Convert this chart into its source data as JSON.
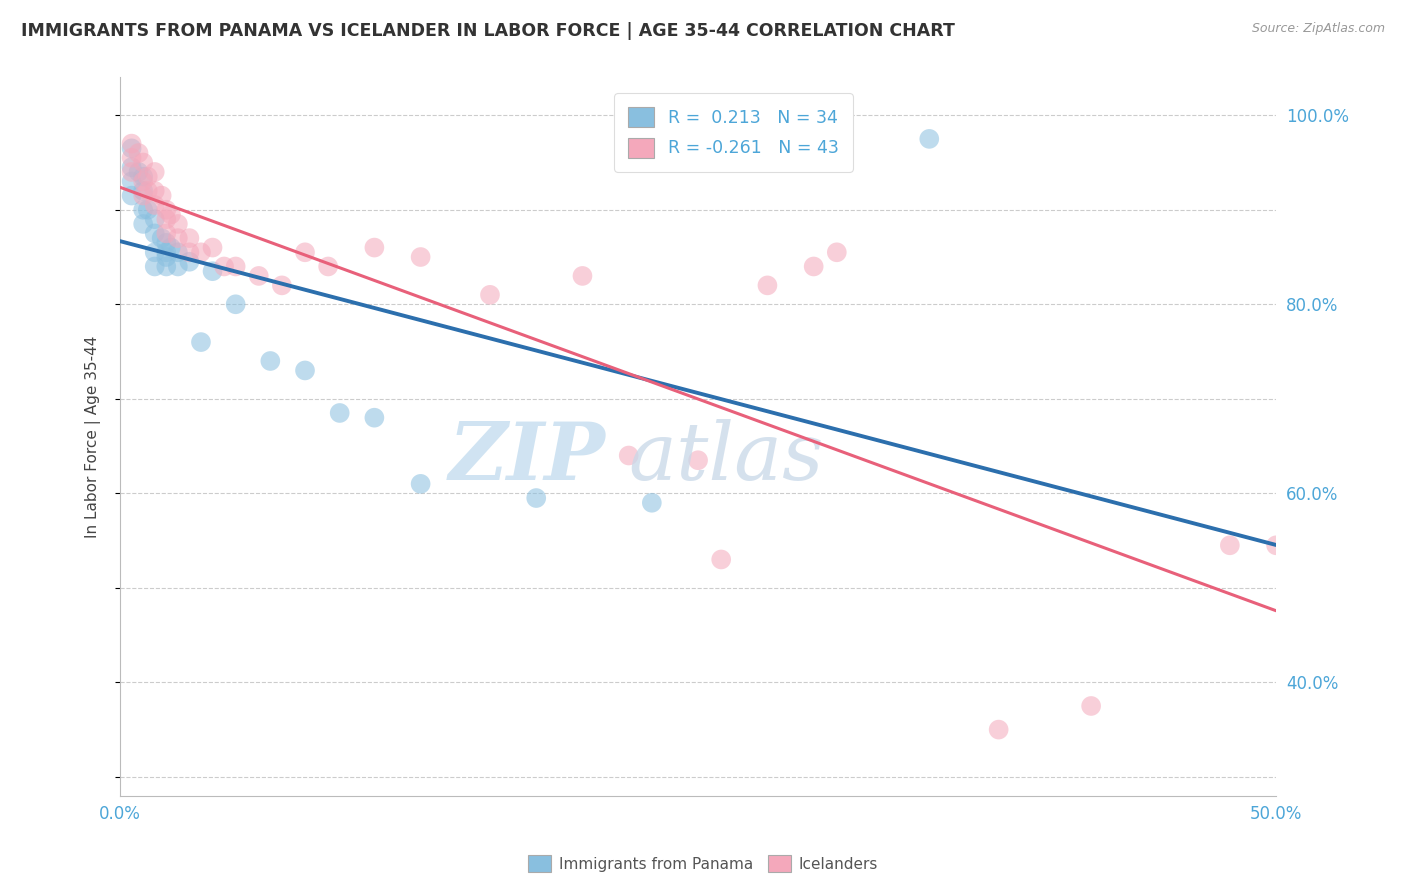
{
  "title": "IMMIGRANTS FROM PANAMA VS ICELANDER IN LABOR FORCE | AGE 35-44 CORRELATION CHART",
  "source": "Source: ZipAtlas.com",
  "ylabel": "In Labor Force | Age 35-44",
  "xlim": [
    0.0,
    0.5
  ],
  "ylim": [
    0.28,
    1.04
  ],
  "xticks": [
    0.0,
    0.05,
    0.1,
    0.15,
    0.2,
    0.25,
    0.3,
    0.35,
    0.4,
    0.45,
    0.5
  ],
  "yticks": [
    0.4,
    0.6,
    0.8,
    1.0
  ],
  "ytick_labels": [
    "40.0%",
    "60.0%",
    "80.0%",
    "100.0%"
  ],
  "blue_color": "#89bfdf",
  "pink_color": "#f4a8bb",
  "blue_line_color": "#2c6fad",
  "pink_line_color": "#e8607a",
  "R_blue": 0.213,
  "N_blue": 34,
  "R_pink": -0.261,
  "N_pink": 43,
  "tick_color": "#4da6d8",
  "watermark_zip_color": "#c8dff0",
  "watermark_atlas_color": "#c8d8e8",
  "panama_x": [
    0.005,
    0.005,
    0.005,
    0.005,
    0.008,
    0.01,
    0.01,
    0.01,
    0.01,
    0.012,
    0.015,
    0.015,
    0.015,
    0.015,
    0.018,
    0.02,
    0.02,
    0.02,
    0.02,
    0.022,
    0.025,
    0.025,
    0.03,
    0.035,
    0.04,
    0.05,
    0.065,
    0.08,
    0.095,
    0.11,
    0.13,
    0.18,
    0.23,
    0.35
  ],
  "panama_y": [
    0.965,
    0.945,
    0.93,
    0.915,
    0.94,
    0.935,
    0.92,
    0.9,
    0.885,
    0.9,
    0.89,
    0.875,
    0.855,
    0.84,
    0.87,
    0.865,
    0.855,
    0.85,
    0.84,
    0.86,
    0.855,
    0.84,
    0.845,
    0.76,
    0.835,
    0.8,
    0.74,
    0.73,
    0.685,
    0.68,
    0.61,
    0.595,
    0.59,
    0.975
  ],
  "iceland_x": [
    0.005,
    0.005,
    0.005,
    0.008,
    0.01,
    0.01,
    0.01,
    0.012,
    0.012,
    0.015,
    0.015,
    0.015,
    0.018,
    0.02,
    0.02,
    0.02,
    0.022,
    0.025,
    0.025,
    0.03,
    0.03,
    0.035,
    0.04,
    0.045,
    0.05,
    0.06,
    0.07,
    0.08,
    0.09,
    0.11,
    0.13,
    0.16,
    0.2,
    0.22,
    0.25,
    0.26,
    0.28,
    0.3,
    0.31,
    0.38,
    0.42,
    0.48,
    0.5
  ],
  "iceland_y": [
    0.97,
    0.955,
    0.94,
    0.96,
    0.95,
    0.93,
    0.915,
    0.935,
    0.92,
    0.94,
    0.92,
    0.905,
    0.915,
    0.9,
    0.89,
    0.875,
    0.895,
    0.885,
    0.87,
    0.87,
    0.855,
    0.855,
    0.86,
    0.84,
    0.84,
    0.83,
    0.82,
    0.855,
    0.84,
    0.86,
    0.85,
    0.81,
    0.83,
    0.64,
    0.635,
    0.53,
    0.82,
    0.84,
    0.855,
    0.35,
    0.375,
    0.545,
    0.545
  ]
}
